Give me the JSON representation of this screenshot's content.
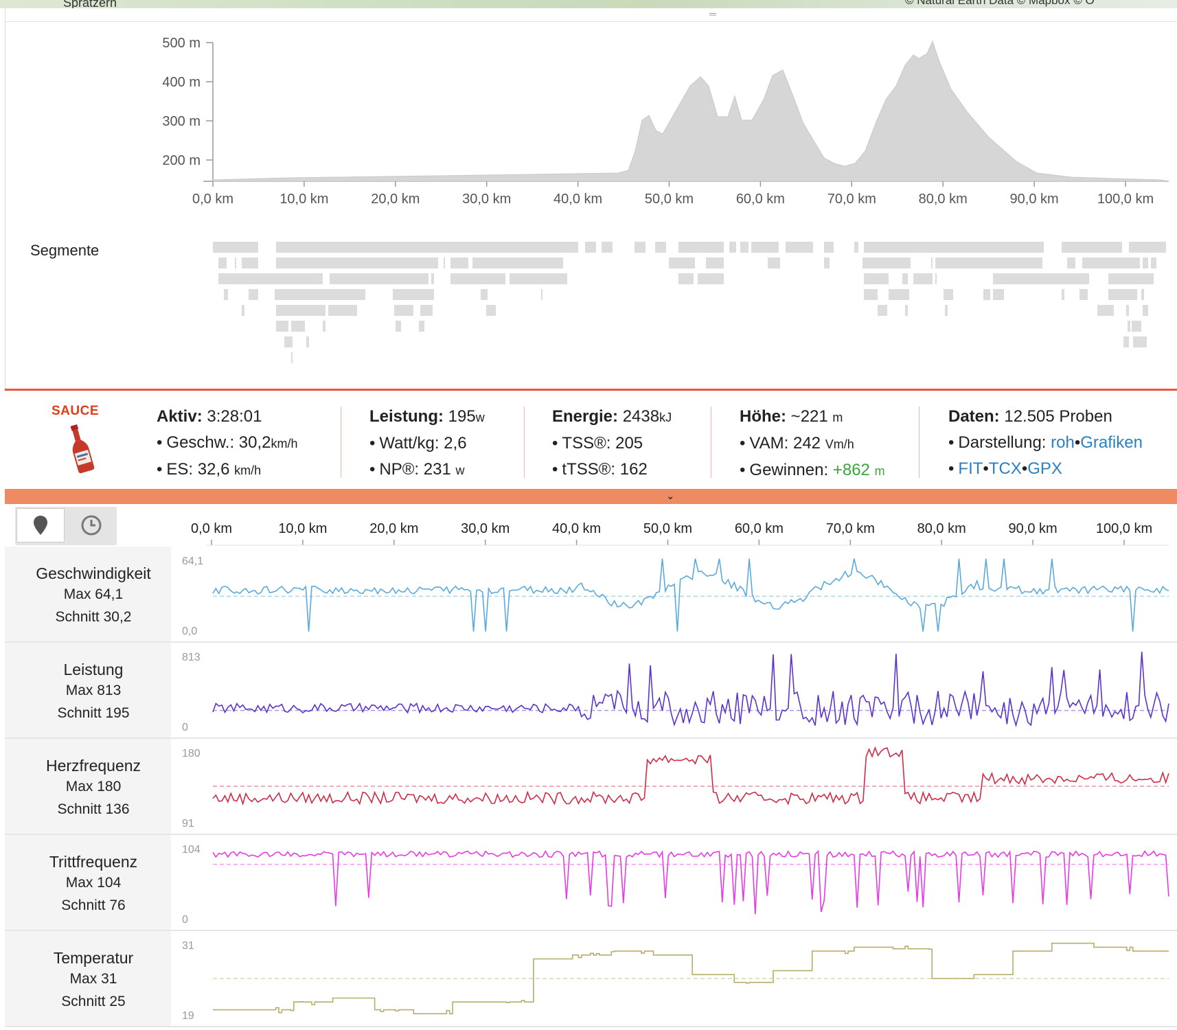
{
  "map": {
    "place_label": "Spratzern",
    "attribution": "© Natural Earth Data © Mapbox © O"
  },
  "elevation": {
    "y_labels": [
      "500 m",
      "400 m",
      "300 m",
      "200 m"
    ],
    "x_labels": [
      "0,0 km",
      "10,0 km",
      "20,0 km",
      "30,0 km",
      "40,0 km",
      "50,0 km",
      "60,0 km",
      "70,0 km",
      "80,0 km",
      "90,0 km",
      "100,0 km"
    ]
  },
  "segments_label": "Segmente",
  "logo_text": "SAUCE",
  "stats": {
    "aktiv": {
      "label": "Aktiv:",
      "value": "3:28:01"
    },
    "geschw": {
      "label": "Geschw.:",
      "value": "30,2",
      "unit": "km/h"
    },
    "es": {
      "label": "ES:",
      "value": "32,6",
      "unit": "km/h"
    },
    "leistung": {
      "label": "Leistung:",
      "value": "195",
      "unit": "w"
    },
    "wattkg": {
      "label": "Watt/kg:",
      "value": "2,6"
    },
    "np": {
      "label": "NP®:",
      "value": "231",
      "unit": "w"
    },
    "energie": {
      "label": "Energie:",
      "value": "2438",
      "unit": "kJ"
    },
    "tss": {
      "label": "TSS®:",
      "value": "205"
    },
    "ttss": {
      "label": "tTSS®:",
      "value": "162"
    },
    "hoehe": {
      "label": "Höhe:",
      "value": "~221",
      "unit": "m"
    },
    "vam": {
      "label": "VAM:",
      "value": "242",
      "unit": "Vm/h"
    },
    "gewinnen": {
      "label": "Gewinnen:",
      "value": "+862",
      "unit": "m"
    },
    "daten": {
      "label": "Daten:",
      "value": "12.505 Proben"
    },
    "darstellung": {
      "label": "Darstellung:",
      "link1": "roh",
      "link2": "Grafiken"
    },
    "exports": [
      "FIT",
      "TCX",
      "GPX"
    ]
  },
  "colors": {
    "accent": "#e8553a",
    "collapse_bar": "#ee8b63",
    "speed": "#5aa9dc",
    "power": "#5a33c9",
    "hr": "#cf2a45",
    "cadence": "#e43be4",
    "temp": "#b5ad6a",
    "link": "#2c7fc0",
    "gain": "#3aa63a"
  },
  "icons": {
    "map_tab": "map-pin-icon",
    "time_tab": "clock-icon",
    "collapse": "double-chevron-down-icon"
  },
  "distance_axis": [
    "0,0 km",
    "10,0 km",
    "20,0 km",
    "30,0 km",
    "40,0 km",
    "50,0 km",
    "60,0 km",
    "70,0 km",
    "80,0 km",
    "90,0 km",
    "100,0 km"
  ],
  "charts": [
    {
      "id": "speed",
      "title": "Geschwindigkeit",
      "max_label": "Max 64,1",
      "avg_label": "Schnitt 30,2",
      "y_max": "64,1",
      "y_min": "0,0"
    },
    {
      "id": "power",
      "title": "Leistung",
      "max_label": "Max 813",
      "avg_label": "Schnitt 195",
      "y_max": "813",
      "y_min": "0"
    },
    {
      "id": "hr",
      "title": "Herzfrequenz",
      "max_label": "Max 180",
      "avg_label": "Schnitt 136",
      "y_max": "180",
      "y_min": "91"
    },
    {
      "id": "cadence",
      "title": "Trittfrequenz",
      "max_label": "Max 104",
      "avg_label": "Schnitt 76",
      "y_max": "104",
      "y_min": "0"
    },
    {
      "id": "temp",
      "title": "Temperatur",
      "max_label": "Max 31",
      "avg_label": "Schnitt 25",
      "y_max": "31",
      "y_min": "19"
    }
  ]
}
